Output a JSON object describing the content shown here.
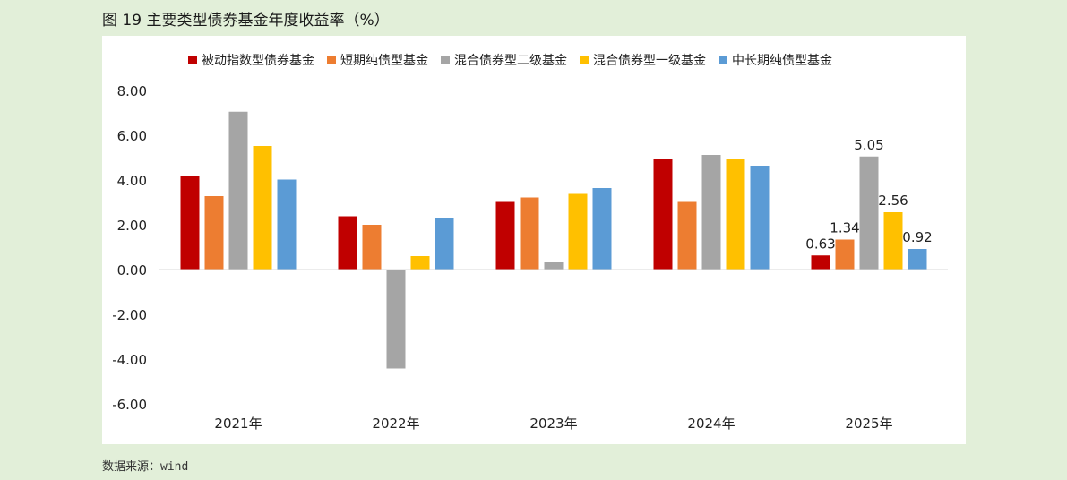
{
  "figure": {
    "title": "图 19 主要类型债券基金年度收益率（%）",
    "source": "数据来源：wind"
  },
  "chart_data": {
    "type": "bar",
    "categories": [
      "2021年",
      "2022年",
      "2023年",
      "2024年",
      "2025年"
    ],
    "series": [
      {
        "name": "被动指数型债券基金",
        "color": "#c00000",
        "values": [
          4.18,
          2.38,
          3.02,
          4.92,
          0.63
        ]
      },
      {
        "name": "短期纯债型基金",
        "color": "#ed7d31",
        "values": [
          3.28,
          2.0,
          3.22,
          3.02,
          1.34
        ]
      },
      {
        "name": "混合债券型二级基金",
        "color": "#a5a5a5",
        "values": [
          7.05,
          -4.42,
          0.32,
          5.12,
          5.05
        ]
      },
      {
        "name": "混合债券型一级基金",
        "color": "#ffc000",
        "values": [
          5.52,
          0.6,
          3.38,
          4.92,
          2.56
        ]
      },
      {
        "name": "中长期纯债型基金",
        "color": "#5b9bd5",
        "values": [
          4.02,
          2.32,
          3.64,
          4.64,
          0.92
        ]
      }
    ],
    "data_labels": [
      {
        "category_index": 4,
        "series_index": 0,
        "text": "0.63"
      },
      {
        "category_index": 4,
        "series_index": 1,
        "text": "1.34"
      },
      {
        "category_index": 4,
        "series_index": 2,
        "text": "5.05"
      },
      {
        "category_index": 4,
        "series_index": 3,
        "text": "2.56"
      },
      {
        "category_index": 4,
        "series_index": 4,
        "text": "0.92"
      }
    ],
    "ylim": [
      -6,
      8
    ],
    "yticks": [
      8,
      6,
      4,
      2,
      0,
      -2,
      -4,
      -6
    ],
    "ytick_labels": [
      "8.00",
      "6.00",
      "4.00",
      "2.00",
      "0.00",
      "-2.00",
      "-4.00",
      "-6.00"
    ],
    "legend_position": "top",
    "grid": false
  }
}
